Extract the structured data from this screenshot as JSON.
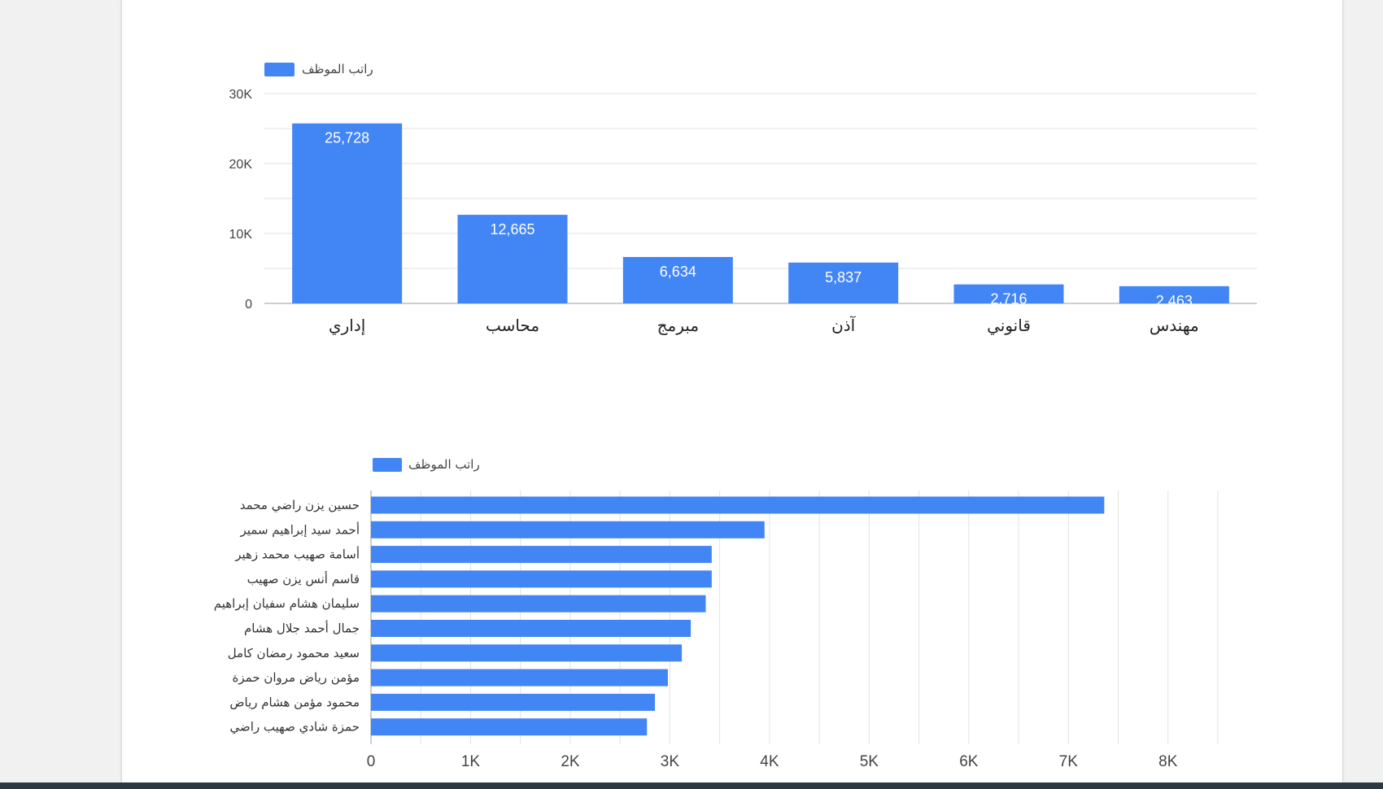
{
  "colors": {
    "bar": "#4285f4",
    "grid": "#e2e2e2",
    "baseline": "#bdbdbd"
  },
  "chart_data": [
    {
      "type": "bar",
      "orientation": "vertical",
      "title": "",
      "xlabel": "",
      "ylabel": "",
      "legend": {
        "position": "top-left",
        "entries": [
          "راتب الموظف"
        ]
      },
      "categories": [
        "إداري",
        "محاسب",
        "مبرمج",
        "آذن",
        "قانوني",
        "مهندس"
      ],
      "series": [
        {
          "name": "راتب الموظف",
          "values": [
            25728,
            12665,
            6634,
            5837,
            2716,
            2463
          ]
        }
      ],
      "data_labels": [
        "25,728",
        "12,665",
        "6,634",
        "5,837",
        "2,716",
        "2,463"
      ],
      "ylim": [
        0,
        30000
      ],
      "y_ticks": [
        {
          "value": 0,
          "label": "0"
        },
        {
          "value": 10000,
          "label": "10K"
        },
        {
          "value": 20000,
          "label": "20K"
        },
        {
          "value": 30000,
          "label": "30K"
        }
      ],
      "grid": true
    },
    {
      "type": "bar",
      "orientation": "horizontal",
      "title": "",
      "xlabel": "",
      "ylabel": "",
      "legend": {
        "position": "top-left",
        "entries": [
          "راتب الموظف"
        ]
      },
      "categories": [
        "حسين يزن راضي محمد",
        "أحمد سيد إبراهيم سمير",
        "أسامة صهيب محمد زهير",
        "قاسم أنس يزن صهيب",
        "سليمان هشام سفيان إبراهيم",
        "جمال أحمد جلال هشام",
        "سعيد محمود رمضان كامل",
        "مؤمن رياض مروان حمزة",
        "محمود مؤمن هشام رياض",
        "حمزة شادي صهيب راضي"
      ],
      "series": [
        {
          "name": "راتب الموظف",
          "values": [
            7360,
            3950,
            3420,
            3420,
            3360,
            3210,
            3120,
            2980,
            2850,
            2770
          ]
        }
      ],
      "xlim": [
        0,
        8500
      ],
      "x_ticks": [
        {
          "value": 0,
          "label": "0"
        },
        {
          "value": 1000,
          "label": "1K"
        },
        {
          "value": 2000,
          "label": "2K"
        },
        {
          "value": 3000,
          "label": "3K"
        },
        {
          "value": 4000,
          "label": "4K"
        },
        {
          "value": 5000,
          "label": "5K"
        },
        {
          "value": 6000,
          "label": "6K"
        },
        {
          "value": 7000,
          "label": "7K"
        },
        {
          "value": 8000,
          "label": "8K"
        }
      ],
      "grid": true
    }
  ]
}
